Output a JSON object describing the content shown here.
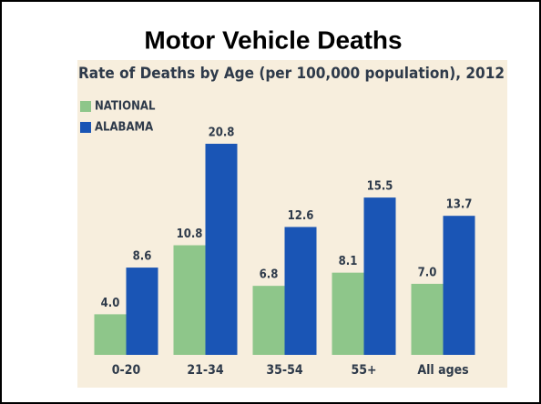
{
  "chart_data": {
    "type": "bar",
    "title": "Motor Vehicle Deaths",
    "subtitle": "Rate of Deaths by Age (per 100,000 population), 2012",
    "categories": [
      "0-20",
      "21-34",
      "35-54",
      "55+",
      "All ages"
    ],
    "series": [
      {
        "name": "NATIONAL",
        "color": "#8ec68a",
        "values": [
          4.0,
          10.8,
          6.8,
          8.1,
          7.0
        ],
        "value_labels": [
          "4.0",
          "10.8",
          "6.8",
          "8.1",
          "7.0"
        ]
      },
      {
        "name": "ALABAMA",
        "color": "#1a55b5",
        "values": [
          8.6,
          20.8,
          12.6,
          15.5,
          13.7
        ],
        "value_labels": [
          "8.6",
          "20.8",
          "12.6",
          "15.5",
          "13.7"
        ]
      }
    ],
    "legend": "top-left"
  }
}
